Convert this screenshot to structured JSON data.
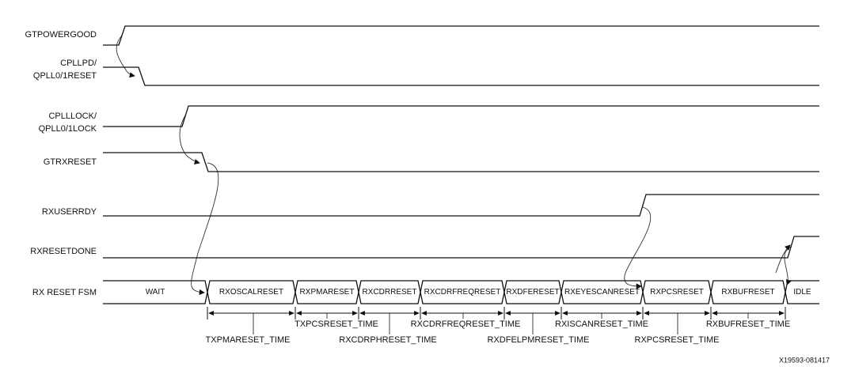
{
  "signals": [
    {
      "lines": [
        "GTPOWERGOOD"
      ]
    },
    {
      "lines": [
        "CPLLPD/",
        "QPLL0/1RESET"
      ]
    },
    {
      "lines": [
        "CPLLLOCK/",
        "QPLL0/1LOCK"
      ]
    },
    {
      "lines": [
        "GTRXRESET"
      ]
    },
    {
      "lines": [
        "RXUSERRDY"
      ]
    },
    {
      "lines": [
        "RXRESETDONE"
      ]
    }
  ],
  "fsm": {
    "label": "RX RESET FSM",
    "states": [
      "WAIT",
      "RXOSCALRESET",
      "RXPMARESET",
      "RXCDRRESET",
      "RXCDRFREQRESET",
      "RXDFERESET",
      "RXEYESCANRESET",
      "RXPCSRESET",
      "RXBUFRESET",
      "IDLE"
    ]
  },
  "timings": [
    "TXPMARESET_TIME",
    "TXPCSRESET_TIME",
    "RXCDRPHRESET_TIME",
    "RXCDRFREQRESET_TIME",
    "RXDFELPMRESET_TIME",
    "RXISCANRESET_TIME",
    "RXPCSRESET_TIME",
    "RXBUFRESET_TIME"
  ],
  "figure_id": "X19593-081417"
}
